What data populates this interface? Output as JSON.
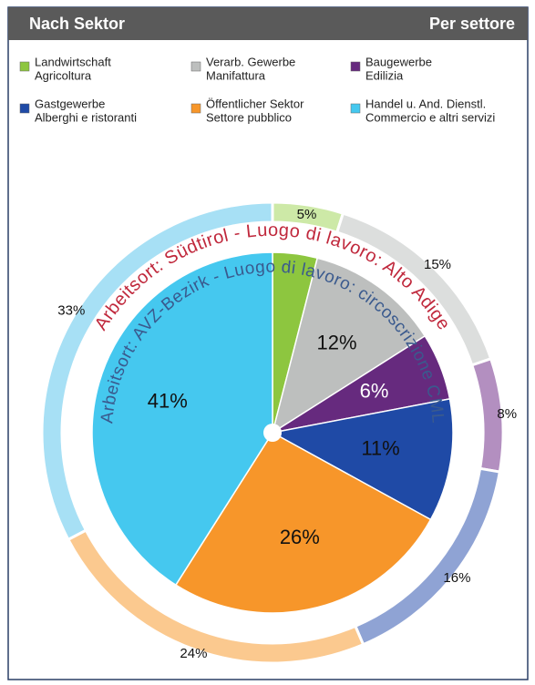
{
  "chart_data": {
    "type": "pie",
    "title": "Nach Sektor",
    "subtitle": "Per settore",
    "categories": [
      "Landwirtschaft",
      "Verarb. Gewerbe",
      "Baugewerbe",
      "Gastgewerbe",
      "Öffentlicher Sektor",
      "Handel u. And. Dienstl."
    ],
    "categories_it": [
      "Agricoltura",
      "Manifattura",
      "Edilizia",
      "Alberghi e ristoranti",
      "Settore pubblico",
      "Commercio e altri servizi"
    ],
    "colors": [
      "#8dc63f",
      "#bdbfbe",
      "#662a7e",
      "#1f4aa6",
      "#f7962a",
      "#45c8ef"
    ],
    "series": [
      {
        "name": "Arbeitsort: AVZ-Bezirk - Luogo di lavoro: circoscrizione CML",
        "color": "#3a5a8e",
        "colors": [
          "#8dc63f",
          "#bdbfbe",
          "#662a7e",
          "#1f4aa6",
          "#f7962a",
          "#45c8ef"
        ],
        "values": [
          4,
          12,
          6,
          11,
          26,
          41
        ],
        "value_labels": [
          null,
          "12%",
          "6%",
          "11%",
          "26%",
          "41%"
        ]
      },
      {
        "name": "Arbeitsort: Südtirol - Luogo di lavoro: Alto Adige",
        "color": "#c0283c",
        "colors": [
          "#cde9a7",
          "#dcdedd",
          "#b38fc0",
          "#8fa3d4",
          "#fbc98f",
          "#a7e0f5"
        ],
        "values": [
          5,
          15,
          8,
          16,
          24,
          33
        ],
        "value_labels": [
          "5%",
          "15%",
          "8%",
          "16%",
          "24%",
          "33%"
        ]
      }
    ]
  }
}
